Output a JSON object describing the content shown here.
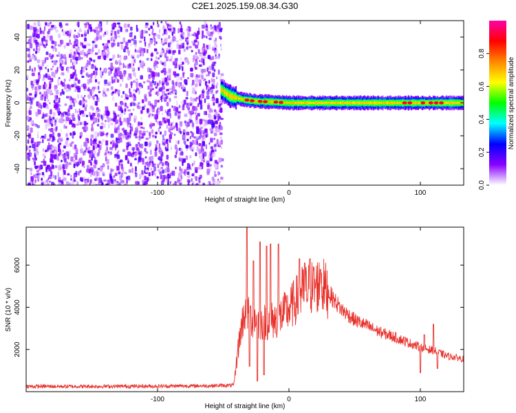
{
  "title": "C2E1.2025.159.08.34.G30",
  "chart_data": [
    {
      "type": "heatmap",
      "title": "C2E1.2025.159.08.34.G30",
      "xlabel": "Height of straight line (km)",
      "ylabel": "Frequency (Hz)",
      "xlim": [
        -200,
        133
      ],
      "ylim": [
        -50,
        50
      ],
      "x_ticks": [
        -100,
        0,
        100
      ],
      "x_tick_labels": [
        "-100",
        "0",
        "100"
      ],
      "y_ticks": [
        -40,
        -20,
        0,
        20,
        40
      ],
      "y_tick_labels": [
        "-40",
        "-20",
        "0",
        "20",
        "40"
      ],
      "noise_region_x": [
        -200,
        -52
      ],
      "signal_band": {
        "x_range": [
          -52,
          133
        ],
        "center_freq": [
          [
            -52,
            8
          ],
          [
            -45,
            4
          ],
          [
            -35,
            2
          ],
          [
            -25,
            1
          ],
          [
            -10,
            0.5
          ],
          [
            0,
            0
          ],
          [
            30,
            0
          ],
          [
            60,
            0
          ],
          [
            90,
            0
          ],
          [
            133,
            0
          ]
        ],
        "half_width_hz": 4
      },
      "hotspots_x": [
        -32,
        -28,
        -22,
        -18,
        -10,
        -6,
        88,
        92,
        102,
        108,
        112,
        116
      ],
      "colorbar": {
        "label": "Normalized spectral amplitude",
        "range": [
          0,
          1
        ],
        "ticks": [
          0.0,
          0.2,
          0.4,
          0.6,
          0.8
        ],
        "tick_labels": [
          "0.0",
          "0.2",
          "0.4",
          "0.6",
          "0.8"
        ],
        "colors": [
          "#ffffff",
          "#8800ff",
          "#0000ff",
          "#00ffff",
          "#00ff00",
          "#ffff00",
          "#ff8800",
          "#ff0000",
          "#ff00aa"
        ]
      },
      "grid": false
    },
    {
      "type": "line",
      "xlabel": "Height of straight line (km)",
      "ylabel": "SNR (10 * v/v)",
      "xlim": [
        -200,
        133
      ],
      "ylim": [
        0,
        7800
      ],
      "x_ticks": [
        -100,
        0,
        100
      ],
      "x_tick_labels": [
        "-100",
        "0",
        "100"
      ],
      "y_ticks": [
        2000,
        4000,
        6000
      ],
      "y_tick_labels": [
        "2000",
        "4000",
        "6000"
      ],
      "line_color": "#e8302a",
      "envelope": [
        [
          -200,
          250
        ],
        [
          -150,
          250
        ],
        [
          -100,
          260
        ],
        [
          -60,
          280
        ],
        [
          -42,
          300
        ],
        [
          -38,
          2400
        ],
        [
          -34,
          3800
        ],
        [
          -30,
          3500
        ],
        [
          -20,
          3300
        ],
        [
          -10,
          3400
        ],
        [
          0,
          3900
        ],
        [
          10,
          4700
        ],
        [
          20,
          5000
        ],
        [
          25,
          5100
        ],
        [
          30,
          4700
        ],
        [
          40,
          3900
        ],
        [
          50,
          3400
        ],
        [
          60,
          3100
        ],
        [
          70,
          2800
        ],
        [
          80,
          2600
        ],
        [
          90,
          2350
        ],
        [
          100,
          2100
        ],
        [
          110,
          1950
        ],
        [
          120,
          1700
        ],
        [
          133,
          1550
        ]
      ],
      "peaks": [
        {
          "x": -32,
          "y": 7800
        },
        {
          "x": -30,
          "y": 1200
        },
        {
          "x": -27,
          "y": 6200
        },
        {
          "x": -24,
          "y": 500
        },
        {
          "x": -22,
          "y": 7100
        },
        {
          "x": -19,
          "y": 800
        },
        {
          "x": -17,
          "y": 6900
        },
        {
          "x": -14,
          "y": 7000
        },
        {
          "x": -8,
          "y": 7000
        },
        {
          "x": 8,
          "y": 6300
        },
        {
          "x": 12,
          "y": 6100
        },
        {
          "x": 16,
          "y": 6300
        },
        {
          "x": 24,
          "y": 5800
        },
        {
          "x": 100,
          "y": 900
        },
        {
          "x": 103,
          "y": 2700
        },
        {
          "x": 110,
          "y": 3200
        },
        {
          "x": 113,
          "y": 1100
        }
      ],
      "grid": false
    }
  ]
}
